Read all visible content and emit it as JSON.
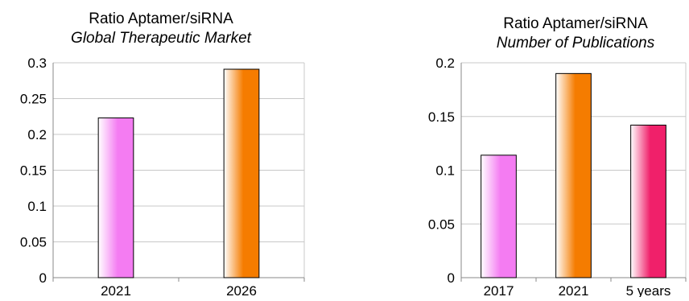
{
  "chart_data": [
    {
      "type": "bar",
      "title": "Ratio Aptamer/siRNA",
      "subtitle": "Global Therapeutic Market",
      "categories": [
        "2021",
        "2026"
      ],
      "values": [
        0.223,
        0.291
      ],
      "bar_gradients": [
        [
          "#ffffff",
          "#f47cf2"
        ],
        [
          "#ffffff",
          "#f57c00"
        ]
      ],
      "ylim": [
        0,
        0.3
      ],
      "yticks": [
        0,
        0.05,
        0.1,
        0.15,
        0.2,
        0.25,
        0.3
      ],
      "ytick_labels": [
        "0",
        "0.05",
        "0.1",
        "0.15",
        "0.2",
        "0.25",
        "0.3"
      ],
      "grid": true
    },
    {
      "type": "bar",
      "title": "Ratio Aptamer/siRNA",
      "subtitle": "Number of Publications",
      "categories": [
        "2017",
        "2021",
        "5 years"
      ],
      "values": [
        0.114,
        0.19,
        0.142
      ],
      "bar_gradients": [
        [
          "#ffffff",
          "#f47cf2"
        ],
        [
          "#ffffff",
          "#f57c00"
        ],
        [
          "#ffffff",
          "#f0206a"
        ]
      ],
      "ylim": [
        0,
        0.2
      ],
      "yticks": [
        0,
        0.05,
        0.1,
        0.15,
        0.2
      ],
      "ytick_labels": [
        "0",
        "0.05",
        "0.1",
        "0.15",
        "0.2"
      ],
      "grid": true
    }
  ]
}
